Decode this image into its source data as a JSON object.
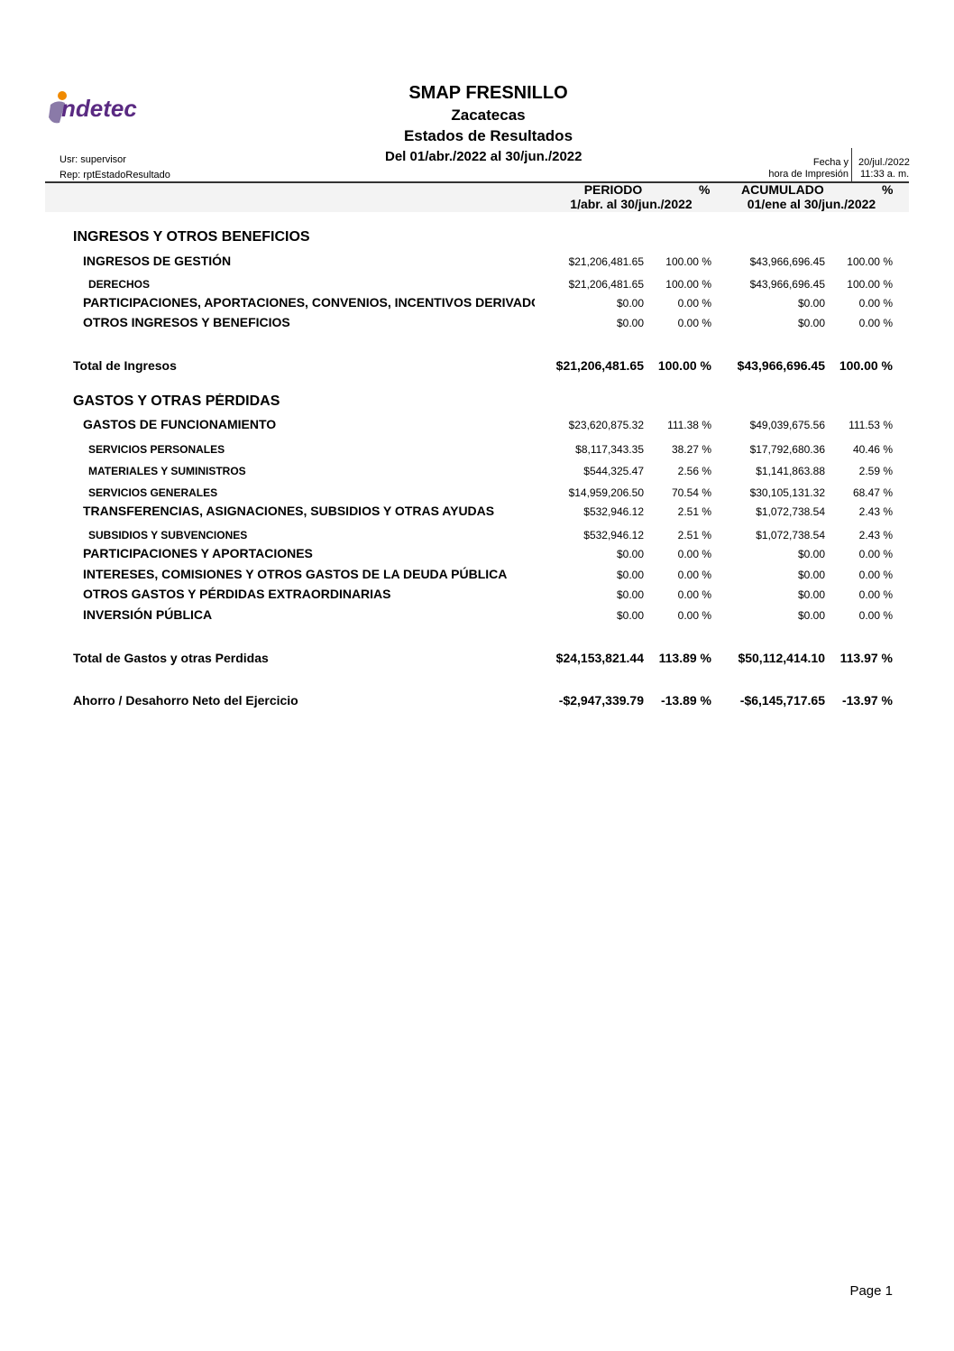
{
  "logo": {
    "text": "indetec",
    "colors": {
      "purple": "#5a2a82",
      "orange": "#f08a00"
    }
  },
  "header": {
    "org": "SMAP FRESNILLO",
    "state": "Zacatecas",
    "report": "Estados de Resultados",
    "range": "Del 01/abr./2022 al 30/jun./2022",
    "user": "Usr: supervisor",
    "rep": "Rep: rptEstadoResultado",
    "print_label_1": "Fecha y",
    "print_label_2": "hora de Impresión",
    "print_date": "20/jul./2022",
    "print_time": "11:33 a. m."
  },
  "columns": {
    "periodo": "PERIODO",
    "periodo_range": "1/abr. al 30/jun./2022",
    "pct1": "%",
    "acumulado": "ACUMULADO",
    "acumulado_range": "01/ene al 30/jun./2022",
    "pct2": "%"
  },
  "rows": [
    {
      "type": "lv0",
      "label": "INGRESOS Y OTROS BENEFICIOS"
    },
    {
      "type": "lv1",
      "label": "INGRESOS DE GESTIÓN",
      "v": [
        "$21,206,481.65",
        "100.00 %",
        "$43,966,696.45",
        "100.00 %"
      ]
    },
    {
      "type": "lv2",
      "label": "DERECHOS",
      "v": [
        "$21,206,481.65",
        "100.00 %",
        "$43,966,696.45",
        "100.00 %"
      ]
    },
    {
      "type": "lv1",
      "label": "PARTICIPACIONES, APORTACIONES, CONVENIOS, INCENTIVOS DERIVADOS",
      "v": [
        "$0.00",
        "0.00 %",
        "$0.00",
        "0.00 %"
      ]
    },
    {
      "type": "lv1",
      "label": "OTROS INGRESOS Y BENEFICIOS",
      "v": [
        "$0.00",
        "0.00 %",
        "$0.00",
        "0.00 %"
      ]
    },
    {
      "type": "total",
      "label": "Total de Ingresos",
      "v": [
        "$21,206,481.65",
        "100.00 %",
        "$43,966,696.45",
        "100.00 %"
      ]
    },
    {
      "type": "lv0",
      "label": "GASTOS Y OTRAS PÉRDIDAS"
    },
    {
      "type": "lv1",
      "label": "GASTOS DE FUNCIONAMIENTO",
      "v": [
        "$23,620,875.32",
        "111.38 %",
        "$49,039,675.56",
        "111.53 %"
      ]
    },
    {
      "type": "lv2",
      "label": "SERVICIOS PERSONALES",
      "v": [
        "$8,117,343.35",
        "38.27 %",
        "$17,792,680.36",
        "40.46 %"
      ]
    },
    {
      "type": "lv2",
      "label": "MATERIALES Y SUMINISTROS",
      "v": [
        "$544,325.47",
        "2.56 %",
        "$1,141,863.88",
        "2.59 %"
      ]
    },
    {
      "type": "lv2",
      "label": "SERVICIOS GENERALES",
      "v": [
        "$14,959,206.50",
        "70.54 %",
        "$30,105,131.32",
        "68.47 %"
      ]
    },
    {
      "type": "lv1",
      "label": "TRANSFERENCIAS, ASIGNACIONES, SUBSIDIOS Y OTRAS AYUDAS",
      "v": [
        "$532,946.12",
        "2.51 %",
        "$1,072,738.54",
        "2.43 %"
      ]
    },
    {
      "type": "lv2",
      "label": "SUBSIDIOS Y SUBVENCIONES",
      "v": [
        "$532,946.12",
        "2.51 %",
        "$1,072,738.54",
        "2.43 %"
      ]
    },
    {
      "type": "lv1",
      "label": "PARTICIPACIONES Y APORTACIONES",
      "v": [
        "$0.00",
        "0.00 %",
        "$0.00",
        "0.00 %"
      ]
    },
    {
      "type": "lv1",
      "label": "INTERESES, COMISIONES Y OTROS GASTOS DE LA DEUDA PÚBLICA",
      "v": [
        "$0.00",
        "0.00 %",
        "$0.00",
        "0.00 %"
      ]
    },
    {
      "type": "lv1",
      "label": "OTROS GASTOS Y PÉRDIDAS EXTRAORDINARIAS",
      "v": [
        "$0.00",
        "0.00 %",
        "$0.00",
        "0.00 %"
      ]
    },
    {
      "type": "lv1",
      "label": "INVERSIÓN PÚBLICA",
      "v": [
        "$0.00",
        "0.00 %",
        "$0.00",
        "0.00 %"
      ]
    },
    {
      "type": "total",
      "label": "Total de Gastos y otras Perdidas",
      "v": [
        "$24,153,821.44",
        "113.89 %",
        "$50,112,414.10",
        "113.97 %"
      ]
    },
    {
      "type": "total",
      "label": "Ahorro / Desahorro Neto del Ejercicio",
      "v": [
        "-$2,947,339.79",
        "-13.89 %",
        "-$6,145,717.65",
        "-13.97 %"
      ]
    }
  ],
  "footer": {
    "page": "Page 1"
  }
}
